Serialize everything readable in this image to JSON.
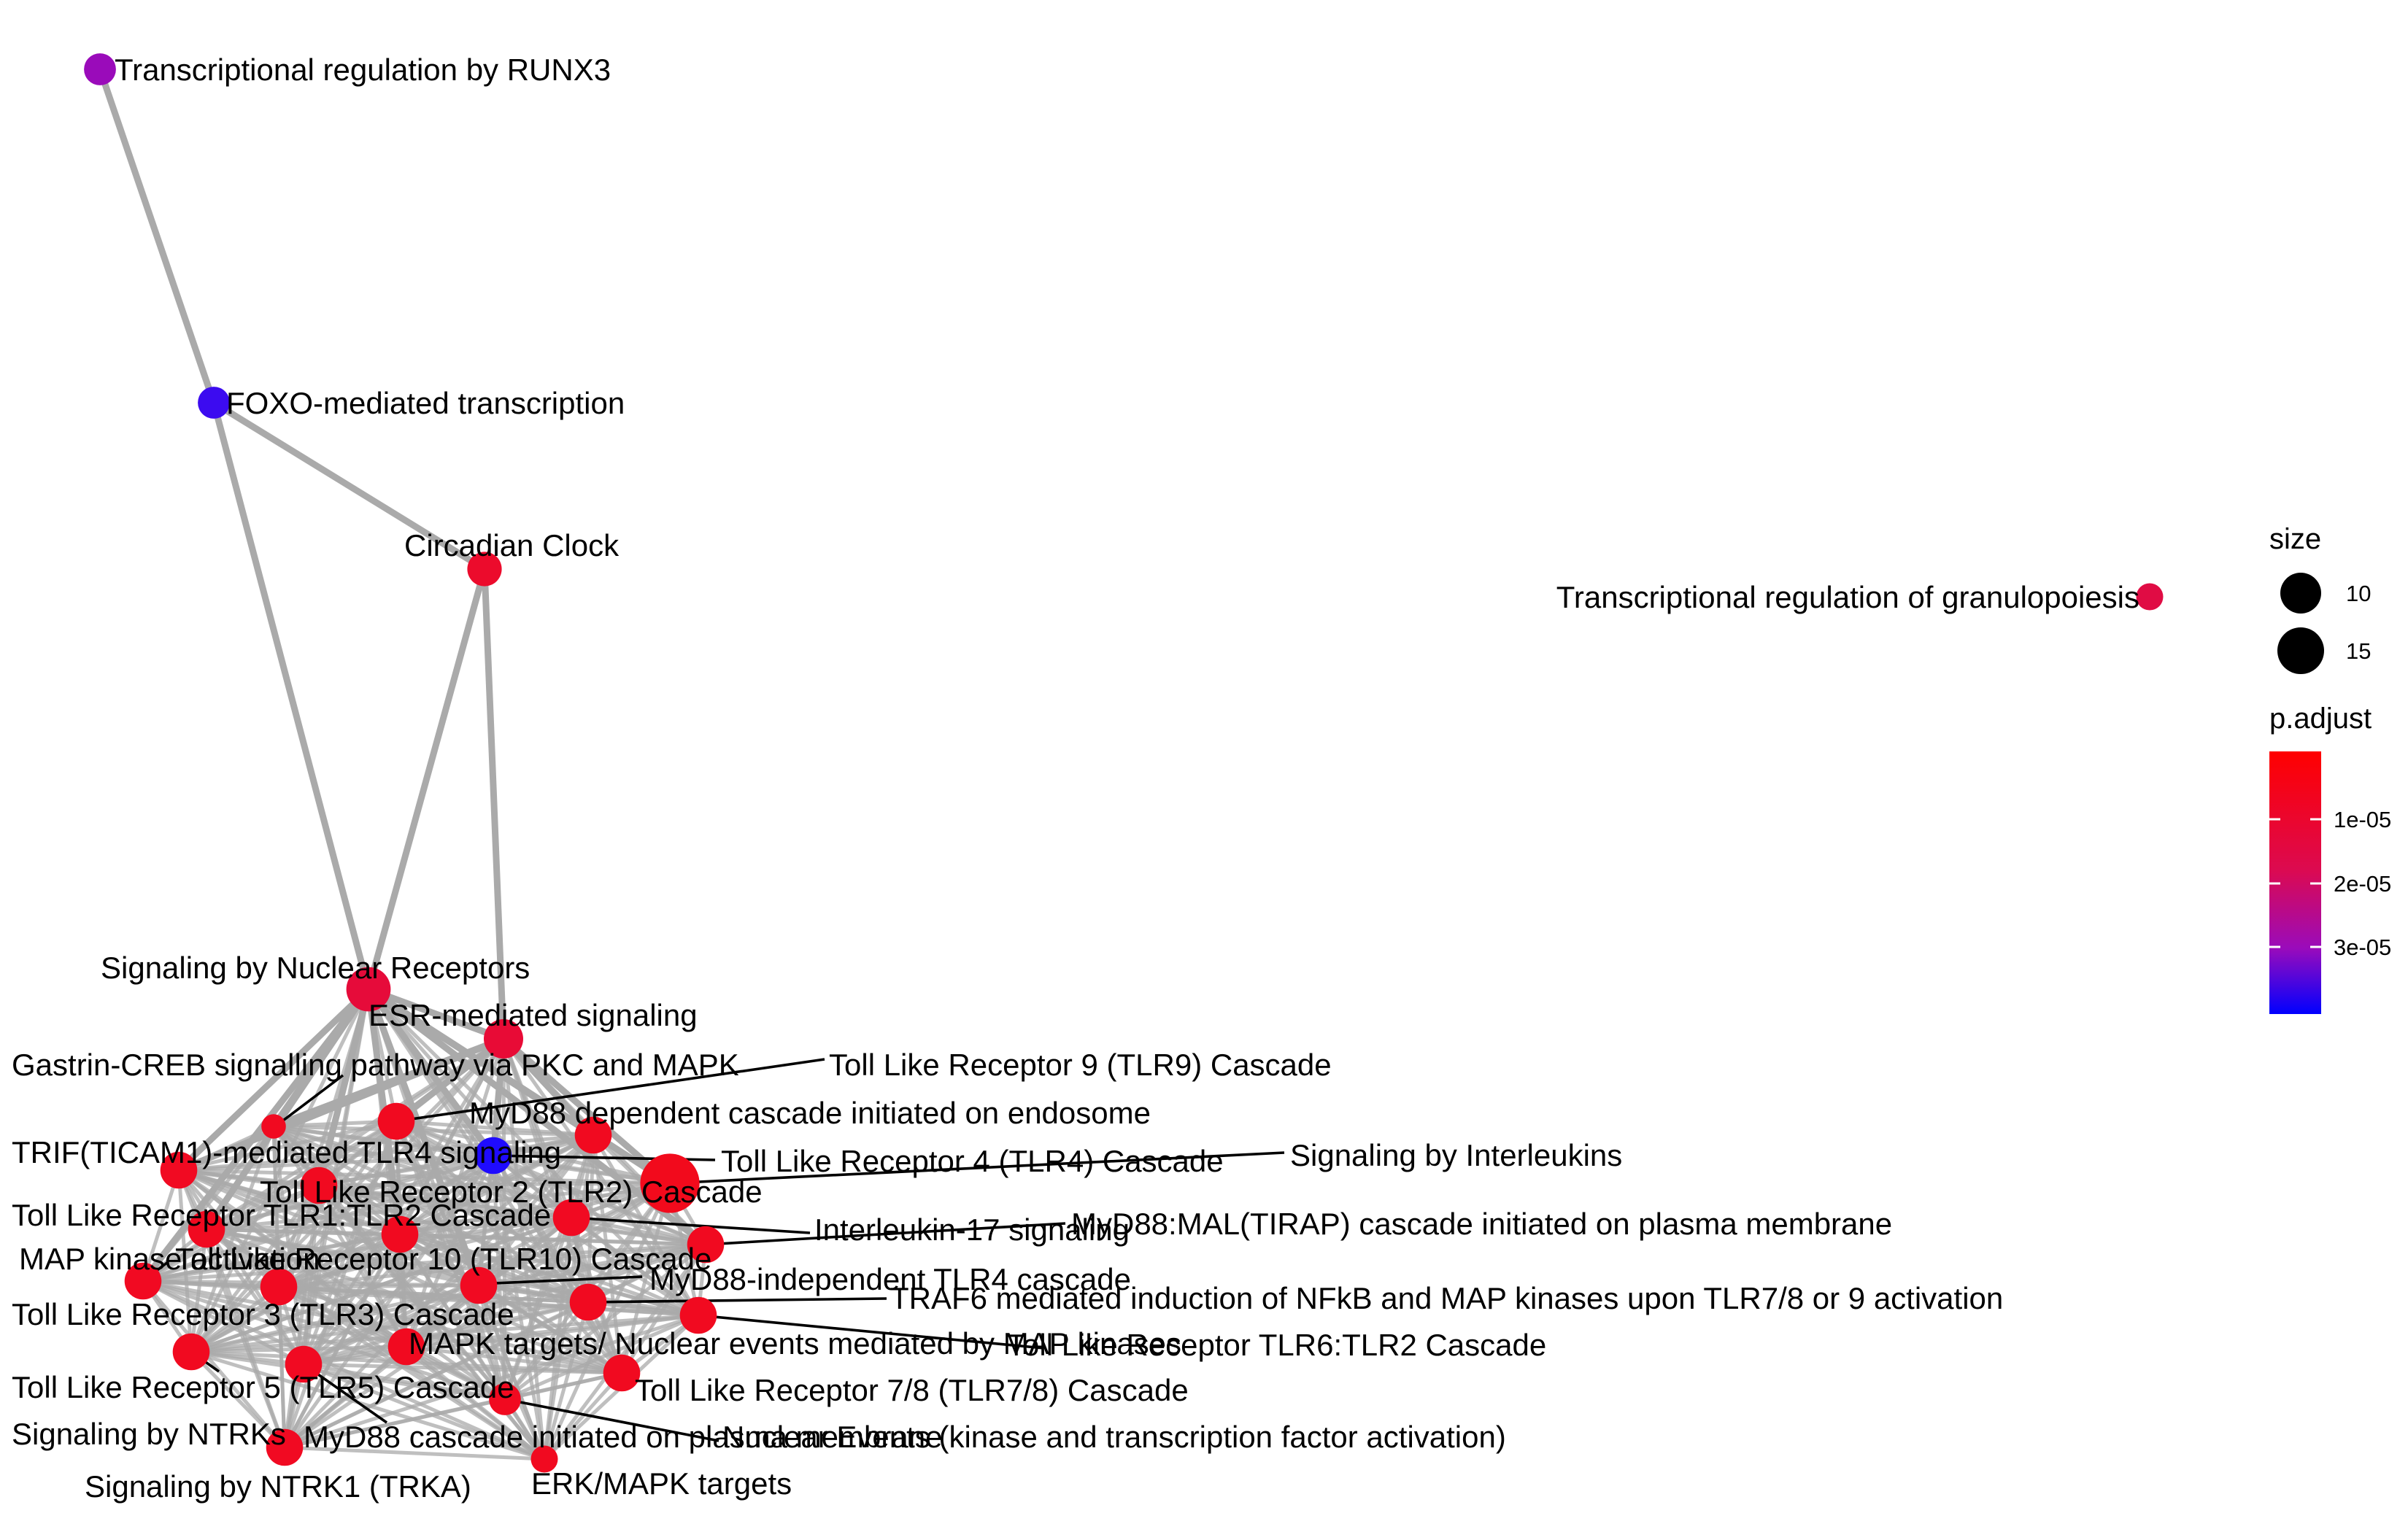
{
  "legend": {
    "size_title": "size",
    "size_levels": [
      10,
      15
    ],
    "color_title": "p.adjust",
    "color_ticks": [
      "1e-05",
      "2e-05",
      "3e-05"
    ],
    "color_low": "#ff0000",
    "color_high": "#0000ff"
  },
  "nodes": [
    {
      "id": "runx3",
      "label": "Transcriptional regulation by RUNX3",
      "size": 7,
      "p_adjust": 3e-05,
      "color": "#9a0bba"
    },
    {
      "id": "foxo",
      "label": "FOXO-mediated transcription",
      "size": 7,
      "p_adjust": 3.7e-05,
      "color": "#3c0bf0"
    },
    {
      "id": "circadian",
      "label": "Circadian Clock",
      "size": 8,
      "p_adjust": 8e-06,
      "color": "#ec0b2c"
    },
    {
      "id": "granulopoiesis",
      "label": "Transcriptional regulation of granulopoiesis",
      "size": 5,
      "p_adjust": 1.3e-05,
      "color": "#e00c44"
    },
    {
      "id": "nuclear",
      "label": "Signaling by Nuclear Receptors",
      "size": 12,
      "p_adjust": 1.2e-05,
      "color": "#e60b3a"
    },
    {
      "id": "esr",
      "label": "ESR-mediated signaling",
      "size": 10,
      "p_adjust": 1.1e-05,
      "color": "#e80b36"
    },
    {
      "id": "gastrin",
      "label": "Gastrin-CREB signalling pathway via PKC and MAPK",
      "size": 4,
      "p_adjust": 6e-06,
      "color": "#f10a20"
    },
    {
      "id": "tlr9",
      "label": "Toll Like Receptor 9 (TLR9) Cascade",
      "size": 9,
      "p_adjust": 6e-06,
      "color": "#f10a20"
    },
    {
      "id": "myd88endo",
      "label": "MyD88 dependent cascade initiated on endosome",
      "size": 9,
      "p_adjust": 6e-06,
      "color": "#f10a20"
    },
    {
      "id": "trif",
      "label": "TRIF(TICAM1)-mediated TLR4 signaling",
      "size": 9,
      "p_adjust": 6e-06,
      "color": "#f10a22"
    },
    {
      "id": "tlr4",
      "label": "Toll Like Receptor 4 (TLR4) Cascade",
      "size": 9,
      "p_adjust": 3.8e-05,
      "color": "#1f0bff"
    },
    {
      "id": "interleukins",
      "label": "Signaling by Interleukins",
      "size": 18,
      "p_adjust": 5e-06,
      "color": "#f20a1c"
    },
    {
      "id": "tlr2",
      "label": "Toll Like Receptor 2 (TLR2) Cascade",
      "size": 9,
      "p_adjust": 6e-06,
      "color": "#f10a20"
    },
    {
      "id": "tlr12",
      "label": "Toll Like Receptor TLR1:TLR2 Cascade",
      "size": 9,
      "p_adjust": 6e-06,
      "color": "#f10a20"
    },
    {
      "id": "il17",
      "label": "Interleukin-17 signaling",
      "size": 9,
      "p_adjust": 6e-06,
      "color": "#f10a22"
    },
    {
      "id": "myd88mal",
      "label": "MyD88:MAL(TIRAP) cascade initiated on plasma membrane",
      "size": 9,
      "p_adjust": 6e-06,
      "color": "#f10a20"
    },
    {
      "id": "mapkinase",
      "label": "MAP kinase activation",
      "size": 9,
      "p_adjust": 6e-06,
      "color": "#f10a22"
    },
    {
      "id": "tlr10",
      "label": "Toll Like Receptor 10 (TLR10) Cascade",
      "size": 9,
      "p_adjust": 6e-06,
      "color": "#f10a20"
    },
    {
      "id": "myd88indep",
      "label": "MyD88-independent TLR4 cascade",
      "size": 9,
      "p_adjust": 6e-06,
      "color": "#f10a22"
    },
    {
      "id": "tlr3",
      "label": "Toll Like Receptor 3 (TLR3) Cascade",
      "size": 9,
      "p_adjust": 6e-06,
      "color": "#f10a22"
    },
    {
      "id": "traf6",
      "label": "TRAF6 mediated induction of NFkB and MAP kinases upon TLR7/8 or 9 activation",
      "size": 9,
      "p_adjust": 6e-06,
      "color": "#f10a20"
    },
    {
      "id": "mapktargets",
      "label": "MAPK targets/ Nuclear events mediated by MAP kinases",
      "size": 9,
      "p_adjust": 6e-06,
      "color": "#f10a20"
    },
    {
      "id": "tlr62",
      "label": "Toll Like Receptor TLR6:TLR2 Cascade",
      "size": 9,
      "p_adjust": 6e-06,
      "color": "#f10a20"
    },
    {
      "id": "tlr5",
      "label": "Toll Like Receptor 5 (TLR5) Cascade",
      "size": 9,
      "p_adjust": 6e-06,
      "color": "#f10a20"
    },
    {
      "id": "tlr78",
      "label": "Toll Like Receptor 7/8 (TLR7/8) Cascade",
      "size": 9,
      "p_adjust": 6e-06,
      "color": "#f10a20"
    },
    {
      "id": "ntrks",
      "label": "Signaling by NTRKs",
      "size": 9,
      "p_adjust": 6e-06,
      "color": "#f10a22"
    },
    {
      "id": "myd88plasma",
      "label": "MyD88 cascade initiated on plasma membrane",
      "size": 9,
      "p_adjust": 6e-06,
      "color": "#f10a20"
    },
    {
      "id": "nuclearevents",
      "label": "Nuclear Events (kinase and transcription factor activation)",
      "size": 7,
      "p_adjust": 6e-06,
      "color": "#f10a20"
    },
    {
      "id": "ntrk1",
      "label": "Signaling by NTRK1 (TRKA)",
      "size": 9,
      "p_adjust": 6e-06,
      "color": "#f10a22"
    },
    {
      "id": "erk",
      "label": "ERK/MAPK targets",
      "size": 5,
      "p_adjust": 6e-06,
      "color": "#f10a20"
    }
  ],
  "edges": [
    [
      "runx3",
      "foxo"
    ],
    [
      "foxo",
      "circadian"
    ],
    [
      "foxo",
      "nuclear"
    ],
    [
      "circadian",
      "nuclear"
    ],
    [
      "circadian",
      "esr"
    ],
    [
      "nuclear",
      "esr"
    ],
    [
      "nuclear",
      "gastrin"
    ],
    [
      "nuclear",
      "myd88endo"
    ],
    [
      "nuclear",
      "trif"
    ],
    [
      "nuclear",
      "tlr4"
    ],
    [
      "nuclear",
      "tlr2"
    ],
    [
      "nuclear",
      "tlr12"
    ],
    [
      "nuclear",
      "mapkinase"
    ],
    [
      "nuclear",
      "tlr10"
    ],
    [
      "nuclear",
      "tlr3"
    ],
    [
      "nuclear",
      "myd88mal"
    ],
    [
      "nuclear",
      "interleukins"
    ],
    [
      "esr",
      "gastrin"
    ],
    [
      "esr",
      "myd88endo"
    ],
    [
      "esr",
      "tlr4"
    ],
    [
      "esr",
      "interleukins"
    ],
    [
      "esr",
      "tlr9"
    ],
    [
      "esr",
      "trif"
    ]
  ]
}
